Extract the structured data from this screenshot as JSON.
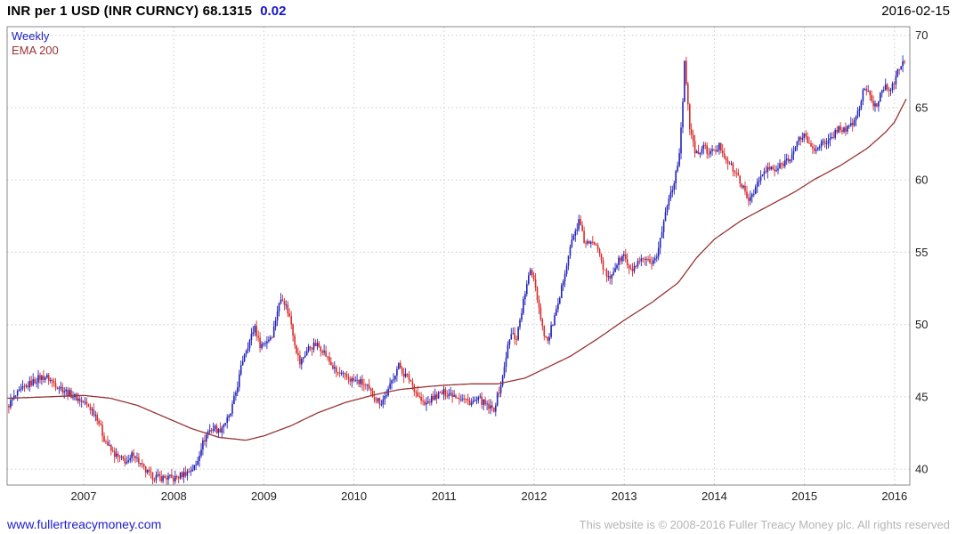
{
  "header": {
    "title": "INR per 1 USD (INR CURNCY) 68.1315",
    "change": "0.02",
    "date": "2016-02-15"
  },
  "legend": {
    "weekly": "Weekly",
    "ema": "EMA 200"
  },
  "footer": {
    "site": "www.fullertreacymoney.com",
    "copyright": "This website is © 2008-2016 Fuller Treacy Money plc. All rights reserved"
  },
  "colors": {
    "up_candle": "#2222bb",
    "down_candle": "#d62a2a",
    "ema_line": "#993333",
    "grid": "#cccccc",
    "frame": "#888888",
    "axis_text": "#222222"
  },
  "chart_data": {
    "type": "candlestick",
    "title": "INR per 1 USD (INR CURNCY)",
    "interval": "Weekly",
    "overlay": "EMA 200",
    "last_price": 68.1315,
    "change": 0.02,
    "xlabel": "",
    "ylabel": "",
    "x_ticks": [
      2007,
      2008,
      2009,
      2010,
      2011,
      2012,
      2013,
      2014,
      2015,
      2016
    ],
    "y_ticks": [
      40,
      45,
      50,
      55,
      60,
      65,
      70
    ],
    "xlim": [
      2006.15,
      2016.17
    ],
    "ylim": [
      38.9,
      70.6
    ],
    "grid": true,
    "legend_position": "top-left",
    "price_anchors": [
      [
        2006.15,
        44.3
      ],
      [
        2006.22,
        44.9
      ],
      [
        2006.3,
        45.4
      ],
      [
        2006.4,
        45.9
      ],
      [
        2006.5,
        46.3
      ],
      [
        2006.58,
        46.4
      ],
      [
        2006.66,
        46.0
      ],
      [
        2006.75,
        45.6
      ],
      [
        2006.85,
        45.2
      ],
      [
        2006.95,
        44.8
      ],
      [
        2007.0,
        44.6
      ],
      [
        2007.08,
        44.2
      ],
      [
        2007.15,
        43.6
      ],
      [
        2007.22,
        42.2
      ],
      [
        2007.3,
        41.3
      ],
      [
        2007.38,
        40.8
      ],
      [
        2007.45,
        40.6
      ],
      [
        2007.5,
        40.4
      ],
      [
        2007.55,
        41.2
      ],
      [
        2007.6,
        40.6
      ],
      [
        2007.68,
        39.9
      ],
      [
        2007.75,
        39.5
      ],
      [
        2007.85,
        39.4
      ],
      [
        2007.95,
        39.4
      ],
      [
        2008.0,
        39.3
      ],
      [
        2008.08,
        39.6
      ],
      [
        2008.15,
        39.8
      ],
      [
        2008.2,
        40.0
      ],
      [
        2008.25,
        40.3
      ],
      [
        2008.3,
        41.5
      ],
      [
        2008.38,
        42.6
      ],
      [
        2008.45,
        42.9
      ],
      [
        2008.5,
        42.6
      ],
      [
        2008.55,
        43.1
      ],
      [
        2008.62,
        43.6
      ],
      [
        2008.7,
        45.6
      ],
      [
        2008.78,
        48.0
      ],
      [
        2008.85,
        49.0
      ],
      [
        2008.9,
        49.9
      ],
      [
        2008.95,
        48.6
      ],
      [
        2009.0,
        48.7
      ],
      [
        2009.05,
        49.0
      ],
      [
        2009.1,
        49.4
      ],
      [
        2009.15,
        51.0
      ],
      [
        2009.2,
        52.0
      ],
      [
        2009.25,
        51.2
      ],
      [
        2009.3,
        50.2
      ],
      [
        2009.35,
        48.5
      ],
      [
        2009.4,
        47.3
      ],
      [
        2009.45,
        47.9
      ],
      [
        2009.5,
        48.4
      ],
      [
        2009.58,
        48.6
      ],
      [
        2009.65,
        48.3
      ],
      [
        2009.72,
        47.5
      ],
      [
        2009.8,
        46.7
      ],
      [
        2009.9,
        46.4
      ],
      [
        2010.0,
        46.1
      ],
      [
        2010.08,
        46.0
      ],
      [
        2010.15,
        45.6
      ],
      [
        2010.22,
        45.0
      ],
      [
        2010.3,
        44.6
      ],
      [
        2010.38,
        45.4
      ],
      [
        2010.45,
        46.6
      ],
      [
        2010.5,
        47.2
      ],
      [
        2010.55,
        46.6
      ],
      [
        2010.62,
        46.2
      ],
      [
        2010.7,
        45.2
      ],
      [
        2010.78,
        44.4
      ],
      [
        2010.85,
        44.8
      ],
      [
        2010.92,
        45.1
      ],
      [
        2011.0,
        45.3
      ],
      [
        2011.1,
        45.2
      ],
      [
        2011.2,
        44.9
      ],
      [
        2011.3,
        44.6
      ],
      [
        2011.4,
        44.8
      ],
      [
        2011.48,
        44.3
      ],
      [
        2011.55,
        44.1
      ],
      [
        2011.6,
        45.2
      ],
      [
        2011.65,
        46.3
      ],
      [
        2011.7,
        48.3
      ],
      [
        2011.75,
        49.4
      ],
      [
        2011.8,
        49.0
      ],
      [
        2011.85,
        50.6
      ],
      [
        2011.9,
        52.2
      ],
      [
        2011.96,
        53.8
      ],
      [
        2012.0,
        53.2
      ],
      [
        2012.05,
        51.3
      ],
      [
        2012.1,
        49.6
      ],
      [
        2012.15,
        48.8
      ],
      [
        2012.2,
        50.0
      ],
      [
        2012.27,
        51.3
      ],
      [
        2012.33,
        53.4
      ],
      [
        2012.4,
        55.4
      ],
      [
        2012.45,
        56.3
      ],
      [
        2012.5,
        57.2
      ],
      [
        2012.55,
        55.8
      ],
      [
        2012.62,
        55.5
      ],
      [
        2012.68,
        55.7
      ],
      [
        2012.72,
        55.3
      ],
      [
        2012.78,
        53.6
      ],
      [
        2012.83,
        53.1
      ],
      [
        2012.9,
        54.0
      ],
      [
        2012.95,
        54.5
      ],
      [
        2013.0,
        54.8
      ],
      [
        2013.06,
        53.6
      ],
      [
        2013.12,
        54.0
      ],
      [
        2013.18,
        54.3
      ],
      [
        2013.25,
        54.5
      ],
      [
        2013.3,
        53.9
      ],
      [
        2013.36,
        54.8
      ],
      [
        2013.42,
        56.5
      ],
      [
        2013.48,
        58.4
      ],
      [
        2013.54,
        59.6
      ],
      [
        2013.6,
        61.3
      ],
      [
        2013.64,
        64.0
      ],
      [
        2013.67,
        68.5
      ],
      [
        2013.7,
        65.8
      ],
      [
        2013.73,
        63.4
      ],
      [
        2013.77,
        62.3
      ],
      [
        2013.82,
        61.6
      ],
      [
        2013.87,
        62.4
      ],
      [
        2013.92,
        62.0
      ],
      [
        2014.0,
        61.9
      ],
      [
        2014.06,
        62.4
      ],
      [
        2014.12,
        61.6
      ],
      [
        2014.18,
        61.0
      ],
      [
        2014.25,
        60.3
      ],
      [
        2014.3,
        59.8
      ],
      [
        2014.37,
        58.5
      ],
      [
        2014.44,
        59.3
      ],
      [
        2014.5,
        60.0
      ],
      [
        2014.56,
        60.6
      ],
      [
        2014.62,
        60.8
      ],
      [
        2014.68,
        60.6
      ],
      [
        2014.75,
        61.1
      ],
      [
        2014.82,
        61.5
      ],
      [
        2014.88,
        61.9
      ],
      [
        2014.94,
        62.8
      ],
      [
        2015.0,
        63.2
      ],
      [
        2015.06,
        62.3
      ],
      [
        2015.12,
        62.1
      ],
      [
        2015.18,
        62.6
      ],
      [
        2015.25,
        62.4
      ],
      [
        2015.3,
        62.9
      ],
      [
        2015.37,
        63.6
      ],
      [
        2015.44,
        63.5
      ],
      [
        2015.5,
        63.6
      ],
      [
        2015.56,
        64.2
      ],
      [
        2015.62,
        65.1
      ],
      [
        2015.66,
        66.5
      ],
      [
        2015.7,
        66.1
      ],
      [
        2015.75,
        65.3
      ],
      [
        2015.8,
        65.1
      ],
      [
        2015.85,
        66.1
      ],
      [
        2015.9,
        66.6
      ],
      [
        2015.95,
        66.3
      ],
      [
        2016.0,
        66.7
      ],
      [
        2016.04,
        67.5
      ],
      [
        2016.08,
        68.2
      ],
      [
        2016.12,
        68.13
      ]
    ],
    "ema_anchors": [
      [
        2006.15,
        44.9
      ],
      [
        2006.6,
        45.0
      ],
      [
        2007.0,
        45.1
      ],
      [
        2007.3,
        44.9
      ],
      [
        2007.6,
        44.4
      ],
      [
        2007.9,
        43.6
      ],
      [
        2008.2,
        42.8
      ],
      [
        2008.5,
        42.2
      ],
      [
        2008.8,
        42.0
      ],
      [
        2009.0,
        42.3
      ],
      [
        2009.3,
        43.0
      ],
      [
        2009.6,
        43.9
      ],
      [
        2009.9,
        44.6
      ],
      [
        2010.2,
        45.1
      ],
      [
        2010.5,
        45.5
      ],
      [
        2010.8,
        45.7
      ],
      [
        2011.0,
        45.8
      ],
      [
        2011.3,
        45.9
      ],
      [
        2011.6,
        45.9
      ],
      [
        2011.9,
        46.3
      ],
      [
        2012.1,
        46.9
      ],
      [
        2012.4,
        47.8
      ],
      [
        2012.7,
        49.0
      ],
      [
        2013.0,
        50.3
      ],
      [
        2013.3,
        51.5
      ],
      [
        2013.6,
        52.9
      ],
      [
        2013.8,
        54.6
      ],
      [
        2014.0,
        55.9
      ],
      [
        2014.3,
        57.2
      ],
      [
        2014.6,
        58.2
      ],
      [
        2014.9,
        59.2
      ],
      [
        2015.1,
        60.0
      ],
      [
        2015.4,
        61.0
      ],
      [
        2015.7,
        62.2
      ],
      [
        2015.9,
        63.3
      ],
      [
        2016.0,
        64.0
      ],
      [
        2016.13,
        65.6
      ]
    ]
  }
}
